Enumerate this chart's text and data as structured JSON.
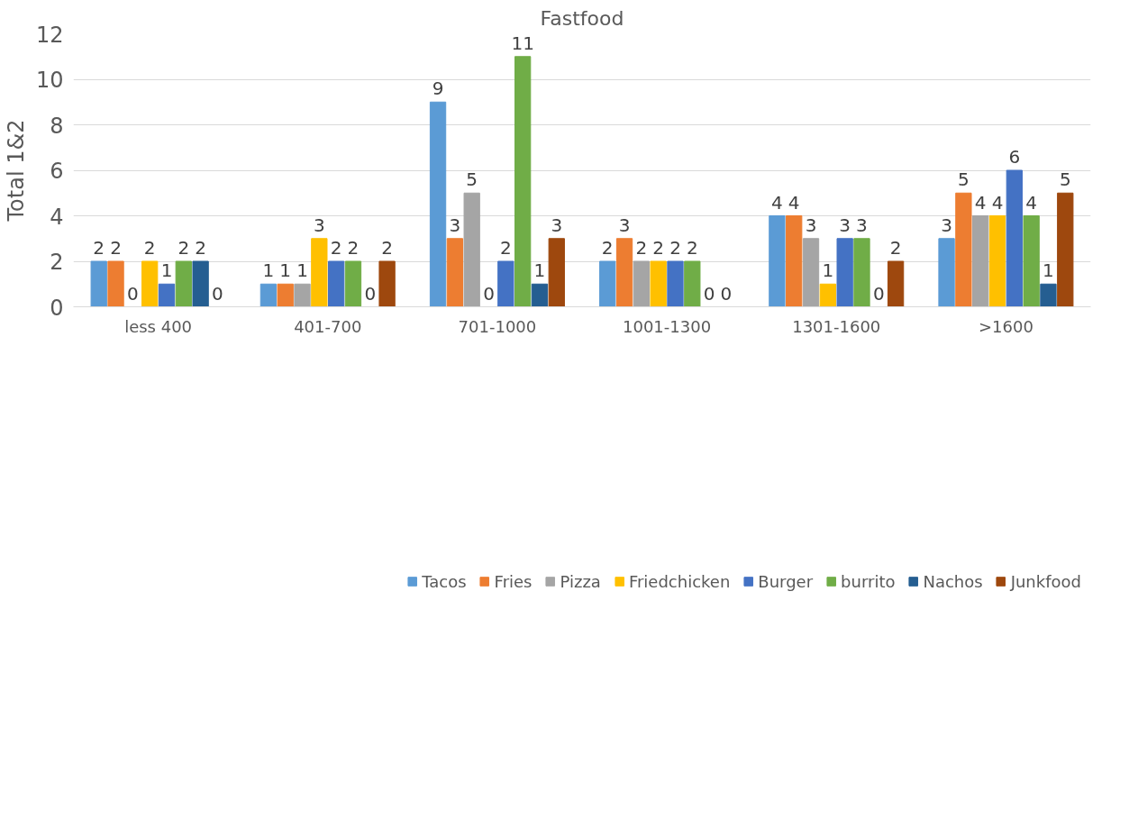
{
  "chart_data": {
    "type": "bar",
    "title": "Fastfood",
    "ylabel": "Total 1&2",
    "categories": [
      "less 400",
      "401-700",
      "701-1000",
      "1001-1300",
      "1301-1600",
      ">1600"
    ],
    "series": [
      {
        "name": "Tacos",
        "color": "#5b9bd5",
        "values": [
          2,
          1,
          9,
          2,
          4,
          3
        ]
      },
      {
        "name": "Fries",
        "color": "#ed7d31",
        "values": [
          2,
          1,
          3,
          3,
          4,
          5
        ]
      },
      {
        "name": "Pizza",
        "color": "#a5a5a5",
        "values": [
          0,
          1,
          5,
          2,
          3,
          4
        ]
      },
      {
        "name": "Friedchicken",
        "color": "#ffc000",
        "values": [
          2,
          3,
          0,
          2,
          1,
          4
        ]
      },
      {
        "name": "Burger",
        "color": "#4472c4",
        "values": [
          1,
          2,
          2,
          2,
          3,
          6
        ]
      },
      {
        "name": "burrito",
        "color": "#70ad47",
        "values": [
          2,
          2,
          11,
          2,
          3,
          4
        ]
      },
      {
        "name": "Nachos",
        "color": "#255e91",
        "values": [
          2,
          0,
          1,
          0,
          0,
          1
        ]
      },
      {
        "name": "Junkfood",
        "color": "#9e480e",
        "values": [
          0,
          2,
          3,
          0,
          2,
          5
        ]
      }
    ],
    "ylim": [
      0,
      12
    ],
    "yticks": [
      0,
      2,
      4,
      6,
      8,
      10,
      12
    ],
    "grid": "y",
    "legend": "bottom",
    "data_labels": true
  }
}
